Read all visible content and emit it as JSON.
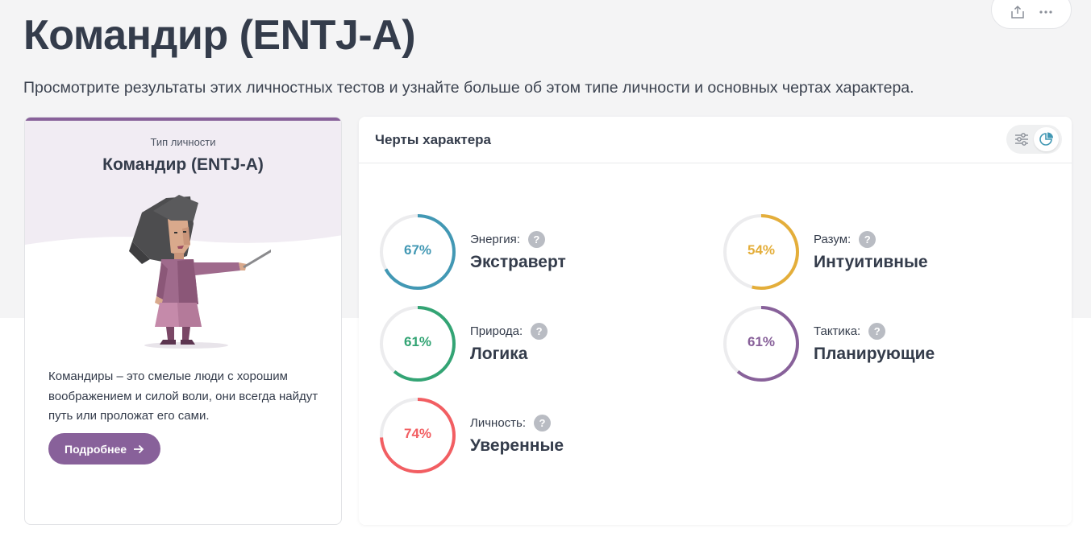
{
  "page": {
    "title": "Командир (ENTJ-A)",
    "description": "Просмотрите результаты этих личностных тестов и узнайте больше об этом типе личности и основных чертах характера."
  },
  "actions": {
    "share_icon": "share-upload-icon",
    "more_icon": "more-dots-icon"
  },
  "type_card": {
    "eyebrow": "Тип личности",
    "name": "Командир (ENTJ-A)",
    "text": "Командиры – это смелые люди с хорошим воображением и силой воли, они всегда найдут путь или проложат его сами.",
    "button_label": "Подробнее",
    "button_icon": "arrow-right-icon",
    "accent": "#88619a"
  },
  "traits_card": {
    "title": "Черты характера",
    "view_options": [
      "sliders-icon",
      "pie-chart-icon"
    ],
    "traits": [
      {
        "label": "Энергия:",
        "value": "Экстраверт",
        "percent_text": "67%",
        "percent": 67,
        "color": "#4298b4"
      },
      {
        "label": "Разум:",
        "value": "Интуитивные",
        "percent_text": "54%",
        "percent": 54,
        "color": "#e4ae3a"
      },
      {
        "label": "Природа:",
        "value": "Логика",
        "percent_text": "61%",
        "percent": 61,
        "color": "#33a474"
      },
      {
        "label": "Тактика:",
        "value": "Планирующие",
        "percent_text": "61%",
        "percent": 61,
        "color": "#88619a"
      },
      {
        "label": "Личность:",
        "value": "Уверенные",
        "percent_text": "74%",
        "percent": 74,
        "color": "#f25e62"
      }
    ],
    "help_glyph": "?"
  }
}
